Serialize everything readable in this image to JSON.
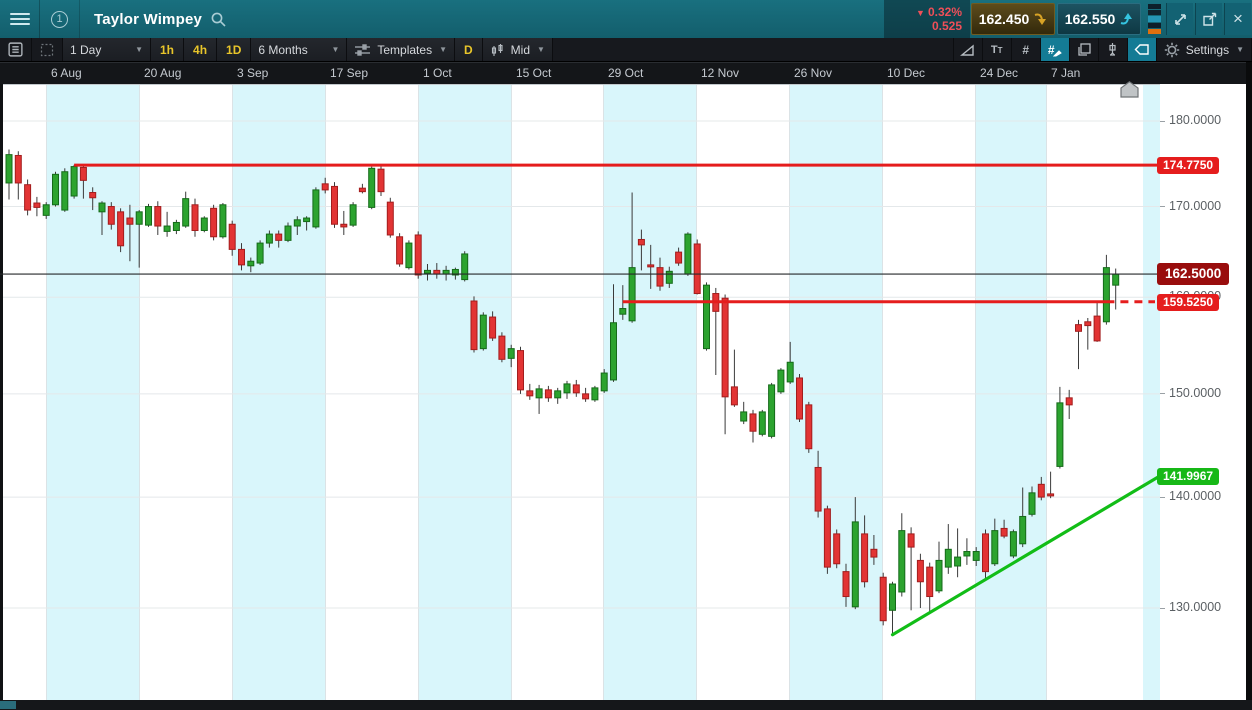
{
  "window": {
    "title": "Taylor Wimpey",
    "change": {
      "direction_icon": "▼",
      "percent": "0.32%",
      "value": "0.525"
    },
    "sell_price": "162.450",
    "buy_price": "162.550",
    "close_icon": "×"
  },
  "toolbar": {
    "timeframe": "1 Day",
    "quick_timeframes": [
      "1h",
      "4h",
      "1D"
    ],
    "range": "6 Months",
    "templates_label": "Templates",
    "period_short": "D",
    "price_type": "Mid",
    "settings_label": "Settings",
    "dropdown_icon": "▼"
  },
  "colors": {
    "topbar_teal": "#176a79",
    "band_blue": "#d9f6fb",
    "candle_green": "#2ca32f",
    "candle_red": "#e23434",
    "level_red": "#e51d1d",
    "trend_green": "#12bd17",
    "badge_dark_red": "#990d0d",
    "badge_green": "#17b817",
    "sell_gold": "#d8a325",
    "buy_cyan": "#35c4e0"
  },
  "chart_data": {
    "type": "candlestick",
    "instrument": "Taylor Wimpey",
    "interval": "1 Day",
    "range": "6 Months",
    "price_scale": "log",
    "ylim": [
      122.3,
      184.5
    ],
    "grid": true,
    "y_ticks": [
      180,
      170,
      160,
      150,
      140,
      130
    ],
    "y_tick_decimals": 4,
    "x_ticks": [
      {
        "label": "6 Aug",
        "x": 46
      },
      {
        "label": "20 Aug",
        "x": 139
      },
      {
        "label": "3 Sep",
        "x": 232
      },
      {
        "label": "17 Sep",
        "x": 325
      },
      {
        "label": "1 Oct",
        "x": 418
      },
      {
        "label": "15 Oct",
        "x": 511
      },
      {
        "label": "29 Oct",
        "x": 603
      },
      {
        "label": "12 Nov",
        "x": 696
      },
      {
        "label": "26 Nov",
        "x": 789
      },
      {
        "label": "10 Dec",
        "x": 882
      },
      {
        "label": "24 Dec",
        "x": 975
      },
      {
        "label": "7 Jan",
        "x": 1046
      }
    ],
    "extra_band": [
      1143,
      1160
    ],
    "candles": [
      [
        172.7,
        176.6,
        170.8,
        176.0
      ],
      [
        175.9,
        176.4,
        170.8,
        172.7
      ],
      [
        172.5,
        173.1,
        169.0,
        169.6
      ],
      [
        170.4,
        171.1,
        168.9,
        169.9
      ],
      [
        169.0,
        170.5,
        168.6,
        170.2
      ],
      [
        170.2,
        174.0,
        170.0,
        173.7
      ],
      [
        169.6,
        174.4,
        169.4,
        174.0
      ],
      [
        171.2,
        174.8,
        170.9,
        174.6
      ],
      [
        174.5,
        174.8,
        170.9,
        173.0
      ],
      [
        171.6,
        172.2,
        169.6,
        171.0
      ],
      [
        169.4,
        170.6,
        166.8,
        170.4
      ],
      [
        170.0,
        170.5,
        167.4,
        168.0
      ],
      [
        169.4,
        169.8,
        164.9,
        165.6
      ],
      [
        168.7,
        170.2,
        163.9,
        168.0
      ],
      [
        168.0,
        169.6,
        163.2,
        169.4
      ],
      [
        167.9,
        170.3,
        167.7,
        170.0
      ],
      [
        170.0,
        170.6,
        166.8,
        167.8
      ],
      [
        167.2,
        169.4,
        166.6,
        167.8
      ],
      [
        167.3,
        168.5,
        166.9,
        168.2
      ],
      [
        167.8,
        171.7,
        167.6,
        170.9
      ],
      [
        170.2,
        170.9,
        166.6,
        167.3
      ],
      [
        167.3,
        168.9,
        167.1,
        168.7
      ],
      [
        169.8,
        170.2,
        166.2,
        166.6
      ],
      [
        166.6,
        170.4,
        166.4,
        170.2
      ],
      [
        168.0,
        168.4,
        164.5,
        165.2
      ],
      [
        165.2,
        165.9,
        162.9,
        163.5
      ],
      [
        163.4,
        164.3,
        162.7,
        163.9
      ],
      [
        163.7,
        166.2,
        163.5,
        165.9
      ],
      [
        165.9,
        167.3,
        165.4,
        166.9
      ],
      [
        166.9,
        167.3,
        165.4,
        166.2
      ],
      [
        166.2,
        168.2,
        166.0,
        167.8
      ],
      [
        167.8,
        168.9,
        166.8,
        168.5
      ],
      [
        168.3,
        168.9,
        167.3,
        168.7
      ],
      [
        167.7,
        172.2,
        167.5,
        171.9
      ],
      [
        172.6,
        173.3,
        171.5,
        171.9
      ],
      [
        172.3,
        172.8,
        167.6,
        168.0
      ],
      [
        168.0,
        169.5,
        166.8,
        167.7
      ],
      [
        167.9,
        170.5,
        167.7,
        170.2
      ],
      [
        172.1,
        172.6,
        171.5,
        171.7
      ],
      [
        169.9,
        174.6,
        169.7,
        174.4
      ],
      [
        174.3,
        174.7,
        171.2,
        171.7
      ],
      [
        170.5,
        171.0,
        166.5,
        166.8
      ],
      [
        166.6,
        167.0,
        163.3,
        163.6
      ],
      [
        163.2,
        166.2,
        163.0,
        165.9
      ],
      [
        166.8,
        167.2,
        162.0,
        162.4
      ],
      [
        162.6,
        163.6,
        161.8,
        162.9
      ],
      [
        162.9,
        163.7,
        162.0,
        162.5
      ],
      [
        162.5,
        163.4,
        161.8,
        162.9
      ],
      [
        162.4,
        163.2,
        161.9,
        163.0
      ],
      [
        161.9,
        165.0,
        161.7,
        164.7
      ],
      [
        159.6,
        160.1,
        154.2,
        154.5
      ],
      [
        154.6,
        158.4,
        154.4,
        158.1
      ],
      [
        157.9,
        158.5,
        155.4,
        155.7
      ],
      [
        155.9,
        156.3,
        153.2,
        153.5
      ],
      [
        153.6,
        155.0,
        152.7,
        154.6
      ],
      [
        154.4,
        154.8,
        150.0,
        150.4
      ],
      [
        150.3,
        151.0,
        149.4,
        149.8
      ],
      [
        149.6,
        150.9,
        148.0,
        150.5
      ],
      [
        150.4,
        150.8,
        149.2,
        149.6
      ],
      [
        149.6,
        150.6,
        149.0,
        150.3
      ],
      [
        150.1,
        151.3,
        149.5,
        151.0
      ],
      [
        150.9,
        151.4,
        149.7,
        150.1
      ],
      [
        150.0,
        150.6,
        149.2,
        149.5
      ],
      [
        149.4,
        150.8,
        149.2,
        150.6
      ],
      [
        150.3,
        152.5,
        150.1,
        152.1
      ],
      [
        151.4,
        161.4,
        151.2,
        157.3
      ],
      [
        158.2,
        161.3,
        157.6,
        158.8
      ],
      [
        157.5,
        171.6,
        157.3,
        163.2
      ],
      [
        166.3,
        167.4,
        162.9,
        165.7
      ],
      [
        163.5,
        165.7,
        160.9,
        163.3
      ],
      [
        163.2,
        164.3,
        160.7,
        161.2
      ],
      [
        161.5,
        163.3,
        161.0,
        162.8
      ],
      [
        164.9,
        165.4,
        163.4,
        163.7
      ],
      [
        162.5,
        167.1,
        162.3,
        166.9
      ],
      [
        165.8,
        166.3,
        160.3,
        160.4
      ],
      [
        154.6,
        161.6,
        154.4,
        161.3
      ],
      [
        160.4,
        161.0,
        151.9,
        158.5
      ],
      [
        159.9,
        160.3,
        146.0,
        149.7
      ],
      [
        150.7,
        154.5,
        148.7,
        148.9
      ],
      [
        147.3,
        149.2,
        147.0,
        148.2
      ],
      [
        148.0,
        148.4,
        145.2,
        146.3
      ],
      [
        146.0,
        148.4,
        145.8,
        148.2
      ],
      [
        145.8,
        151.1,
        145.6,
        150.9
      ],
      [
        150.2,
        152.6,
        150.0,
        152.4
      ],
      [
        151.2,
        155.3,
        151.0,
        153.2
      ],
      [
        151.6,
        152.0,
        147.2,
        147.5
      ],
      [
        148.9,
        149.2,
        144.2,
        144.6
      ],
      [
        142.8,
        144.4,
        138.1,
        138.7
      ],
      [
        138.9,
        139.2,
        133.0,
        133.6
      ],
      [
        136.6,
        137.0,
        133.5,
        133.9
      ],
      [
        133.2,
        133.9,
        130.1,
        131.0
      ],
      [
        130.1,
        140.0,
        129.9,
        137.7
      ],
      [
        136.6,
        138.3,
        131.8,
        132.3
      ],
      [
        135.2,
        136.5,
        133.8,
        134.5
      ],
      [
        132.7,
        133.1,
        128.5,
        128.9
      ],
      [
        129.8,
        132.3,
        127.7,
        132.1
      ],
      [
        131.4,
        138.5,
        131.0,
        136.9
      ],
      [
        136.6,
        137.2,
        129.8,
        135.4
      ],
      [
        134.2,
        134.8,
        130.0,
        132.3
      ],
      [
        133.6,
        134.0,
        129.6,
        131.0
      ],
      [
        131.5,
        135.9,
        131.3,
        134.2
      ],
      [
        133.6,
        137.5,
        133.0,
        135.2
      ],
      [
        133.7,
        137.1,
        132.7,
        134.5
      ],
      [
        134.6,
        136.2,
        133.8,
        135.0
      ],
      [
        134.2,
        135.4,
        133.7,
        135.0
      ],
      [
        136.6,
        137.0,
        132.6,
        133.2
      ],
      [
        133.9,
        138.0,
        133.7,
        136.9
      ],
      [
        137.1,
        137.9,
        136.2,
        136.4
      ],
      [
        134.6,
        137.0,
        134.4,
        136.8
      ],
      [
        135.7,
        140.9,
        135.4,
        138.2
      ],
      [
        138.4,
        141.0,
        138.2,
        140.4
      ],
      [
        141.2,
        141.9,
        139.7,
        140.0
      ],
      [
        140.3,
        142.4,
        139.9,
        140.2
      ],
      [
        142.9,
        150.7,
        142.7,
        149.1
      ],
      [
        149.6,
        150.4,
        147.5,
        148.9
      ],
      [
        157.1,
        157.6,
        152.5,
        156.4
      ],
      [
        157.4,
        157.8,
        154.5,
        157.0
      ],
      [
        158.0,
        159.4,
        155.3,
        155.4
      ],
      [
        157.4,
        164.6,
        157.1,
        163.2
      ],
      [
        161.3,
        163.1,
        158.7,
        162.5
      ]
    ],
    "levels": [
      {
        "name": "resistance-line",
        "price": 174.775,
        "label": "174.7750",
        "badge_color": "#e51d1d",
        "from_candle": 7
      },
      {
        "name": "support-line",
        "price": 159.525,
        "label": "159.5250",
        "badge_color": "#e51d1d",
        "from_candle": 66,
        "dashed_from_candle": 118
      },
      {
        "name": "current-price-line",
        "price": 162.5,
        "label": "162.5000",
        "badge_color": "#990d0d",
        "full_width": true,
        "big_badge": true
      }
    ],
    "trendline": {
      "from_candle": 95,
      "from_price": 127.7,
      "to_price": 141.9967,
      "label": "141.9967",
      "badge_color": "#17b817"
    }
  }
}
